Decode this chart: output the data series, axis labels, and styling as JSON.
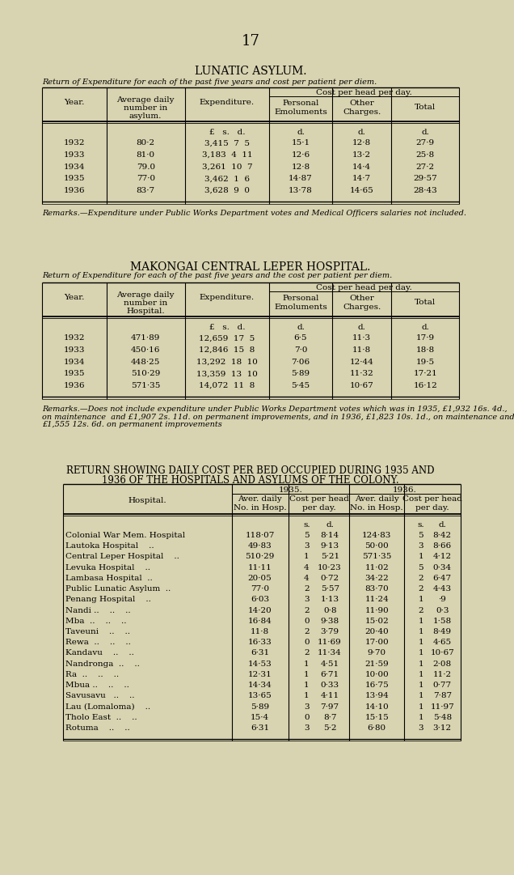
{
  "bg_color": "#d8d3b0",
  "page_num": "17",
  "title1": "LUNATIC ASYLUM.",
  "subtitle1": "Return of Expenditure for each of the past five years and cost per patient per diem.",
  "table1_data": [
    [
      "1932",
      "80·2",
      "3,415  7  5",
      "15·1",
      "12·8",
      "27·9"
    ],
    [
      "1933",
      "81·0",
      "3,183  4  11",
      "12·6",
      "13·2",
      "25·8"
    ],
    [
      "1934",
      "79.0",
      "3,261  10  7",
      "12·8",
      "14·4",
      "27·2"
    ],
    [
      "1935",
      "77·0",
      "3,462  1  6",
      "14·87",
      "14·7",
      "29·57"
    ],
    [
      "1936",
      "83·7",
      "3,628  9  0",
      "13·78",
      "14·65",
      "28·43"
    ]
  ],
  "remarks1": "Remarks.—Expenditure under Public Works Department votes and Medical Officers salaries not included.",
  "title2": "MAKONGAI CENTRAL LEPER HOSPITAL.",
  "subtitle2": "Return of Expenditure for each of the past five years and the cost per patient per diem.",
  "table2_data": [
    [
      "1932",
      "471·89",
      "12,659  17  5",
      "6·5",
      "11·3",
      "17·9"
    ],
    [
      "1933",
      "450·16",
      "12,846  15  8",
      "7·0",
      "11·8",
      "18·8"
    ],
    [
      "1934",
      "448·25",
      "13,292  18  10",
      "7·06",
      "12·44",
      "19·5"
    ],
    [
      "1935",
      "510·29",
      "13,359  13  10",
      "5·89",
      "11·32",
      "17·21"
    ],
    [
      "1936",
      "571·35",
      "14,072  11  8",
      "5·45",
      "10·67",
      "16·12"
    ]
  ],
  "remarks2_line1": "Remarks.—Does not include expenditure under Public Works Department votes which was in 1935, £1,932 16s. 4d.,",
  "remarks2_line2": "on maintenance  and £1,907 2s. 11d. on permanent improvements, and in 1936, £1,823 10s. 1d., on maintenance and",
  "remarks2_line3": "£1,555 12s. 6d. on permanent improvements",
  "title3a": "RETURN SHOWING DAILY COST PER BED OCCUPIED DURING 1935 AND",
  "title3b": "1936 OF THE HOSPITALS AND ASYLUMS OF THE COLONY.",
  "table3_hospitals": [
    "Colonial War Mem. Hospital",
    "Lautoka Hospital    ..",
    "Central Leper Hospital    ..",
    "Levuka Hospital    ..",
    "Lambasa Hospital  ..",
    "Public Lunatic Asylum  ..",
    "Penang Hospital    ..",
    "Nandi ..    ..    ..",
    "Mba  ..    ..    ..",
    "Taveuni    ..    ..",
    "Rewa  ..    ..    ..",
    "Kandavu    ..    ..",
    "Nandronga  ..    ..",
    "Ra  ..    ..    ..",
    "Mbua ..    ..    ..",
    "Savusavu   ..    ..",
    "Lau (Lomaloma)    ..",
    "Tholo East  ..    ..",
    "Rotuma    ..    .."
  ],
  "table3_1935_avg": [
    "118·07",
    "49·83",
    "510·29",
    "11·11",
    "20·05",
    "77·0",
    "6·03",
    "14·20",
    "16·84",
    "11·8",
    "16·33",
    "6·31",
    "14·53",
    "12·31",
    "14·34",
    "13·65",
    "5·89",
    "15·4",
    "6·31"
  ],
  "table3_1935_s": [
    "5",
    "3",
    "1",
    "4",
    "4",
    "2",
    "3",
    "2",
    "0",
    "2",
    "0",
    "2",
    "1",
    "1",
    "1",
    "1",
    "3",
    "0",
    "3"
  ],
  "table3_1935_d": [
    "8·14",
    "9·13",
    "5·21",
    "10·23",
    "0·72",
    "5·57",
    "1·13",
    "0·8",
    "9·38",
    "3·79",
    "11·69",
    "11·34",
    "4·51",
    "6·71",
    "0·33",
    "4·11",
    "7·97",
    "8·7",
    "5·2"
  ],
  "table3_1936_avg": [
    "124·83",
    "50·00",
    "571·35",
    "11·02",
    "34·22",
    "83·70",
    "11·24",
    "11·90",
    "15·02",
    "20·40",
    "17·00",
    "9·70",
    "21·59",
    "10·00",
    "16·75",
    "13·94",
    "14·10",
    "15·15",
    "6·80"
  ],
  "table3_1936_s": [
    "5",
    "3",
    "1",
    "5",
    "2",
    "2",
    "1",
    "2",
    "1",
    "1",
    "1",
    "1",
    "1",
    "1",
    "1",
    "1",
    "1",
    "1",
    "3"
  ],
  "table3_1936_d": [
    "8·42",
    "8·66",
    "4·12",
    "0·34",
    "6·47",
    "4·43",
    "·9",
    "0·3",
    "1·58",
    "8·49",
    "4·65",
    "10·67",
    "2·08",
    "11·2",
    "0·77",
    "7·87",
    "11·97",
    "5·48",
    "3·12"
  ]
}
